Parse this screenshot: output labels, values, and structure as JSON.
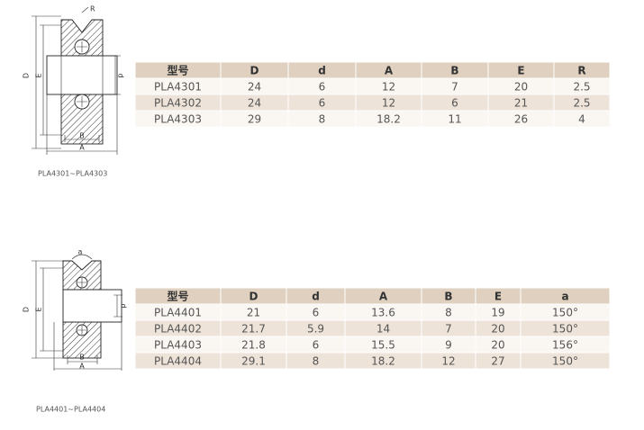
{
  "diagrams": [
    {
      "labels": [
        "R",
        "D",
        "E",
        "d",
        "B",
        "A"
      ],
      "caption": "PLA4301~PLA4303"
    },
    {
      "labels": [
        "a",
        "D",
        "E",
        "d",
        "B",
        "A"
      ],
      "caption": "PLA4401~PLA4404"
    }
  ],
  "tables": [
    {
      "header": [
        "型号",
        "D",
        "d",
        "A",
        "B",
        "E",
        "R"
      ],
      "rows": [
        [
          "PLA4301",
          24,
          6,
          12,
          7,
          20,
          2.5
        ],
        [
          "PLA4302",
          24,
          6,
          12,
          6,
          21,
          2.5
        ],
        [
          "PLA4303",
          29,
          8,
          18.2,
          11,
          26,
          4
        ]
      ]
    },
    {
      "header": [
        "型号",
        "D",
        "d",
        "A",
        "B",
        "E",
        "a"
      ],
      "rows": [
        [
          "PLA4401",
          21,
          6,
          13.6,
          8,
          19,
          "150°"
        ],
        [
          "PLA4402",
          21.7,
          5.9,
          14,
          7,
          20,
          "150°"
        ],
        [
          "PLA4403",
          21.8,
          6,
          15.5,
          9,
          20,
          "156°"
        ],
        [
          "PLA4404",
          29.1,
          8,
          18.2,
          12,
          27,
          "150°"
        ]
      ]
    }
  ]
}
